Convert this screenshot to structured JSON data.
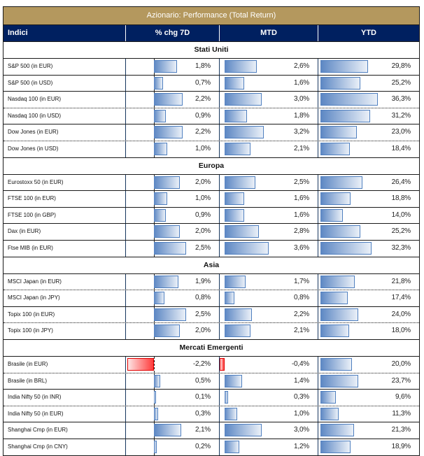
{
  "title": "Azionario: Performance (Total Return)",
  "headers": [
    "Indici",
    "% chg 7D",
    "MTD",
    "YTD"
  ],
  "colors": {
    "title_bg": "#b4985e",
    "header_bg": "#002060",
    "positive_bar": "#5b86c3",
    "negative_bar": "#ff3b3b"
  },
  "sections": [
    {
      "name": "Stati Uniti",
      "rows": [
        {
          "name": "S&P 500 (in EUR)",
          "chg7d": 1.8,
          "mtd": 2.6,
          "ytd": 29.8,
          "chg7d_label": "1,8%",
          "mtd_label": "2,6%",
          "ytd_label": "29,8%",
          "sep": "solid"
        },
        {
          "name": "S&P 500 (in USD)",
          "chg7d": 0.7,
          "mtd": 1.6,
          "ytd": 25.2,
          "chg7d_label": "0,7%",
          "mtd_label": "1,6%",
          "ytd_label": "25,2%",
          "sep": "solid"
        },
        {
          "name": "Nasdaq 100 (in EUR)",
          "chg7d": 2.2,
          "mtd": 3.0,
          "ytd": 36.3,
          "chg7d_label": "2,2%",
          "mtd_label": "3,0%",
          "ytd_label": "36,3%",
          "sep": "dotted"
        },
        {
          "name": "Nasdaq 100 (in USD)",
          "chg7d": 0.9,
          "mtd": 1.8,
          "ytd": 31.2,
          "chg7d_label": "0,9%",
          "mtd_label": "1,8%",
          "ytd_label": "31,2%",
          "sep": "solid"
        },
        {
          "name": "Dow Jones (in EUR)",
          "chg7d": 2.2,
          "mtd": 3.2,
          "ytd": 23.0,
          "chg7d_label": "2,2%",
          "mtd_label": "3,2%",
          "ytd_label": "23,0%",
          "sep": "dotted"
        },
        {
          "name": "Dow Jones (in USD)",
          "chg7d": 1.0,
          "mtd": 2.1,
          "ytd": 18.4,
          "chg7d_label": "1,0%",
          "mtd_label": "2,1%",
          "ytd_label": "18,4%",
          "sep": "solid"
        }
      ]
    },
    {
      "name": "Europa",
      "rows": [
        {
          "name": "Eurostoxx 50 (in EUR)",
          "chg7d": 2.0,
          "mtd": 2.5,
          "ytd": 26.4,
          "chg7d_label": "2,0%",
          "mtd_label": "2,5%",
          "ytd_label": "26,4%",
          "sep": "solid"
        },
        {
          "name": "FTSE 100 (in EUR)",
          "chg7d": 1.0,
          "mtd": 1.6,
          "ytd": 18.8,
          "chg7d_label": "1,0%",
          "mtd_label": "1,6%",
          "ytd_label": "18,8%",
          "sep": "solid"
        },
        {
          "name": "FTSE 100 (in GBP)",
          "chg7d": 0.9,
          "mtd": 1.6,
          "ytd": 14.0,
          "chg7d_label": "0,9%",
          "mtd_label": "1,6%",
          "ytd_label": "14,0%",
          "sep": "solid"
        },
        {
          "name": "Dax (in EUR)",
          "chg7d": 2.0,
          "mtd": 2.8,
          "ytd": 25.2,
          "chg7d_label": "2,0%",
          "mtd_label": "2,8%",
          "ytd_label": "25,2%",
          "sep": "solid"
        },
        {
          "name": "Ftse MIB (in EUR)",
          "chg7d": 2.5,
          "mtd": 3.6,
          "ytd": 32.3,
          "chg7d_label": "2,5%",
          "mtd_label": "3,6%",
          "ytd_label": "32,3%",
          "sep": "solid"
        }
      ]
    },
    {
      "name": "Asia",
      "rows": [
        {
          "name": "MSCI Japan (in EUR)",
          "chg7d": 1.9,
          "mtd": 1.7,
          "ytd": 21.8,
          "chg7d_label": "1,9%",
          "mtd_label": "1,7%",
          "ytd_label": "21,8%",
          "sep": "dotted"
        },
        {
          "name": "MSCI Japan (in JPY)",
          "chg7d": 0.8,
          "mtd": 0.8,
          "ytd": 17.4,
          "chg7d_label": "0,8%",
          "mtd_label": "0,8%",
          "ytd_label": "17,4%",
          "sep": "solid"
        },
        {
          "name": "Topix 100 (in EUR)",
          "chg7d": 2.5,
          "mtd": 2.2,
          "ytd": 24.0,
          "chg7d_label": "2,5%",
          "mtd_label": "2,2%",
          "ytd_label": "24,0%",
          "sep": "dotted"
        },
        {
          "name": "Topix 100 (in JPY)",
          "chg7d": 2.0,
          "mtd": 2.1,
          "ytd": 18.0,
          "chg7d_label": "2,0%",
          "mtd_label": "2,1%",
          "ytd_label": "18,0%",
          "sep": "solid"
        }
      ]
    },
    {
      "name": "Mercati Emergenti",
      "rows": [
        {
          "name": "Brasile (in EUR)",
          "chg7d": -2.2,
          "mtd": -0.4,
          "ytd": 20.0,
          "chg7d_label": "-2,2%",
          "mtd_label": "-0,4%",
          "ytd_label": "20,0%",
          "sep": "dotted"
        },
        {
          "name": "Brasile (in BRL)",
          "chg7d": 0.5,
          "mtd": 1.4,
          "ytd": 23.7,
          "chg7d_label": "0,5%",
          "mtd_label": "1,4%",
          "ytd_label": "23,7%",
          "sep": "solid"
        },
        {
          "name": "India Nifty 50 (in INR)",
          "chg7d": 0.1,
          "mtd": 0.3,
          "ytd": 9.6,
          "chg7d_label": "0,1%",
          "mtd_label": "0,3%",
          "ytd_label": "9,6%",
          "sep": "dotted"
        },
        {
          "name": "India Nifty 50 (in EUR)",
          "chg7d": 0.3,
          "mtd": 1.0,
          "ytd": 11.3,
          "chg7d_label": "0,3%",
          "mtd_label": "1,0%",
          "ytd_label": "11,3%",
          "sep": "solid"
        },
        {
          "name": "Shanghai Cmp (in EUR)",
          "chg7d": 2.1,
          "mtd": 3.0,
          "ytd": 21.3,
          "chg7d_label": "2,1%",
          "mtd_label": "3,0%",
          "ytd_label": "21,3%",
          "sep": "solid"
        },
        {
          "name": "Shanghai Cmp (in CNY)",
          "chg7d": 0.2,
          "mtd": 1.2,
          "ytd": 18.9,
          "chg7d_label": "0,2%",
          "mtd_label": "1,2%",
          "ytd_label": "18,9%",
          "sep": "solid"
        }
      ]
    }
  ]
}
